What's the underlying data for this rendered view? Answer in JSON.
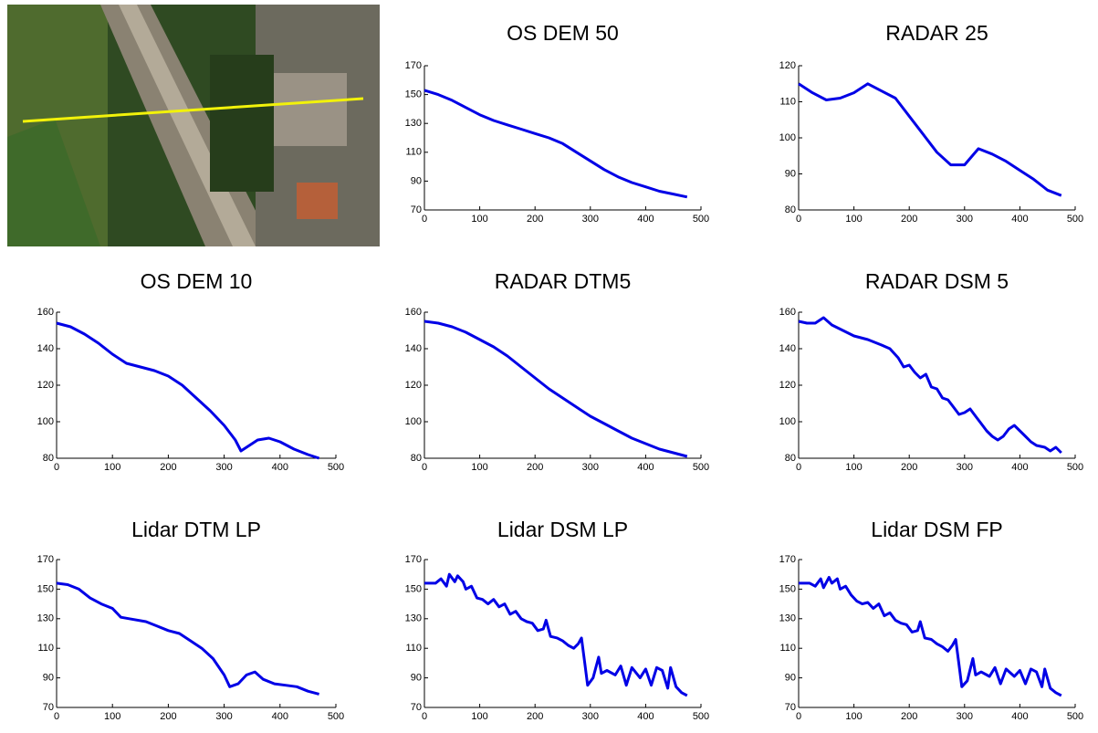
{
  "chart_data": [
    {
      "type": "line",
      "title": "OS DEM 50",
      "color": "#0000e6",
      "xlim": [
        0,
        500
      ],
      "xticks": [
        0,
        100,
        200,
        300,
        400,
        500
      ],
      "ylim": [
        70,
        170
      ],
      "yticks": [
        70,
        90,
        110,
        130,
        150,
        170
      ],
      "x": [
        0,
        25,
        50,
        75,
        100,
        125,
        150,
        175,
        200,
        225,
        250,
        275,
        300,
        325,
        350,
        375,
        400,
        425,
        450,
        475
      ],
      "values": [
        153,
        150,
        146,
        141,
        136,
        132,
        129,
        126,
        123,
        120,
        116,
        110,
        104,
        98,
        93,
        89,
        86,
        83,
        81,
        79
      ]
    },
    {
      "type": "line",
      "title": "RADAR 25",
      "color": "#0000e6",
      "xlim": [
        0,
        500
      ],
      "xticks": [
        0,
        100,
        200,
        300,
        400,
        500
      ],
      "ylim": [
        80,
        120
      ],
      "yticks": [
        80,
        90,
        100,
        110,
        120
      ],
      "x": [
        0,
        25,
        50,
        75,
        100,
        125,
        150,
        175,
        200,
        225,
        250,
        275,
        300,
        325,
        350,
        375,
        400,
        425,
        450,
        475
      ],
      "values": [
        115,
        112.5,
        110.5,
        111,
        112.5,
        115,
        113,
        111,
        106,
        101,
        96,
        92.5,
        92.5,
        97,
        95.5,
        93.5,
        91,
        88.5,
        85.5,
        84
      ]
    },
    {
      "type": "line",
      "title": "OS DEM 10",
      "color": "#0000e6",
      "xlim": [
        0,
        500
      ],
      "xticks": [
        0,
        100,
        200,
        300,
        400,
        500
      ],
      "ylim": [
        80,
        160
      ],
      "yticks": [
        80,
        100,
        120,
        140,
        160
      ],
      "x": [
        0,
        25,
        50,
        75,
        100,
        125,
        150,
        175,
        200,
        225,
        250,
        275,
        300,
        320,
        330,
        340,
        360,
        380,
        400,
        425,
        450,
        470
      ],
      "values": [
        154,
        152,
        148,
        143,
        137,
        132,
        130,
        128,
        125,
        120,
        113,
        106,
        98,
        90,
        84,
        86,
        90,
        91,
        89,
        85,
        82,
        80
      ]
    },
    {
      "type": "line",
      "title": "RADAR DTM5",
      "color": "#0000e6",
      "xlim": [
        0,
        500
      ],
      "xticks": [
        0,
        100,
        200,
        300,
        400,
        500
      ],
      "ylim": [
        80,
        160
      ],
      "yticks": [
        80,
        100,
        120,
        140,
        160
      ],
      "x": [
        0,
        25,
        50,
        75,
        100,
        125,
        150,
        175,
        200,
        225,
        250,
        275,
        300,
        325,
        350,
        375,
        400,
        425,
        450,
        475
      ],
      "values": [
        155,
        154,
        152,
        149,
        145,
        141,
        136,
        130,
        124,
        118,
        113,
        108,
        103,
        99,
        95,
        91,
        88,
        85,
        83,
        81
      ]
    },
    {
      "type": "line",
      "title": "RADAR DSM 5",
      "color": "#0000e6",
      "xlim": [
        0,
        500
      ],
      "xticks": [
        0,
        100,
        200,
        300,
        400,
        500
      ],
      "ylim": [
        80,
        160
      ],
      "yticks": [
        80,
        100,
        120,
        140,
        160
      ],
      "x": [
        0,
        15,
        30,
        45,
        60,
        80,
        100,
        125,
        150,
        165,
        180,
        190,
        200,
        210,
        220,
        230,
        240,
        250,
        260,
        270,
        280,
        290,
        300,
        310,
        320,
        330,
        340,
        350,
        360,
        370,
        380,
        390,
        400,
        410,
        420,
        430,
        445,
        455,
        465,
        475
      ],
      "values": [
        155,
        154,
        154,
        157,
        153,
        150,
        147,
        145,
        142,
        140,
        135,
        130,
        131,
        127,
        124,
        126,
        119,
        118,
        113,
        112,
        108,
        104,
        105,
        107,
        103,
        99,
        95,
        92,
        90,
        92,
        96,
        98,
        95,
        92,
        89,
        87,
        86,
        84,
        86,
        83
      ]
    },
    {
      "type": "line",
      "title": "Lidar DTM LP",
      "color": "#0000e6",
      "xlim": [
        0,
        500
      ],
      "xticks": [
        0,
        100,
        200,
        300,
        400,
        500
      ],
      "ylim": [
        70,
        170
      ],
      "yticks": [
        70,
        90,
        110,
        130,
        150,
        170
      ],
      "x": [
        0,
        20,
        40,
        60,
        80,
        100,
        115,
        130,
        160,
        180,
        200,
        220,
        240,
        260,
        280,
        300,
        310,
        325,
        340,
        355,
        370,
        390,
        410,
        430,
        450,
        470
      ],
      "values": [
        154,
        153,
        150,
        144,
        140,
        137,
        131,
        130,
        128,
        125,
        122,
        120,
        115,
        110,
        103,
        92,
        84,
        86,
        92,
        94,
        89,
        86,
        85,
        84,
        81,
        79
      ]
    },
    {
      "type": "line",
      "title": "Lidar DSM LP",
      "color": "#0000e6",
      "xlim": [
        0,
        500
      ],
      "xticks": [
        0,
        100,
        200,
        300,
        400,
        500
      ],
      "ylim": [
        70,
        170
      ],
      "yticks": [
        70,
        90,
        110,
        130,
        150,
        170
      ],
      "x": [
        0,
        20,
        30,
        40,
        45,
        55,
        60,
        70,
        75,
        85,
        95,
        105,
        115,
        125,
        135,
        145,
        155,
        165,
        175,
        185,
        195,
        205,
        215,
        220,
        228,
        240,
        250,
        260,
        270,
        278,
        284,
        290,
        295,
        305,
        315,
        320,
        330,
        345,
        355,
        365,
        375,
        390,
        400,
        410,
        420,
        430,
        440,
        445,
        455,
        465,
        475
      ],
      "values": [
        154,
        154,
        157,
        152,
        160,
        155,
        159,
        155,
        150,
        152,
        144,
        143,
        140,
        143,
        138,
        140,
        133,
        135,
        130,
        128,
        127,
        122,
        123,
        129,
        118,
        117,
        115,
        112,
        110,
        113,
        117,
        100,
        85,
        90,
        104,
        93,
        95,
        92,
        98,
        85,
        97,
        90,
        96,
        85,
        97,
        95,
        83,
        97,
        84,
        80,
        78
      ]
    },
    {
      "type": "line",
      "title": "Lidar DSM FP",
      "color": "#0000e6",
      "xlim": [
        0,
        500
      ],
      "xticks": [
        0,
        100,
        200,
        300,
        400,
        500
      ],
      "ylim": [
        70,
        170
      ],
      "yticks": [
        70,
        90,
        110,
        130,
        150,
        170
      ],
      "x": [
        0,
        20,
        30,
        40,
        45,
        55,
        60,
        70,
        75,
        85,
        95,
        105,
        115,
        125,
        135,
        145,
        155,
        165,
        175,
        185,
        195,
        205,
        215,
        220,
        228,
        240,
        250,
        260,
        270,
        278,
        284,
        290,
        295,
        305,
        315,
        320,
        330,
        345,
        355,
        365,
        375,
        390,
        400,
        410,
        420,
        430,
        440,
        445,
        455,
        465,
        475
      ],
      "values": [
        154,
        154,
        152,
        157,
        151,
        158,
        154,
        157,
        150,
        152,
        146,
        142,
        140,
        141,
        137,
        140,
        132,
        134,
        129,
        127,
        126,
        121,
        122,
        128,
        117,
        116,
        113,
        111,
        108,
        112,
        116,
        99,
        84,
        88,
        103,
        92,
        94,
        91,
        97,
        86,
        96,
        91,
        95,
        86,
        96,
        94,
        84,
        96,
        83,
        80,
        78
      ]
    }
  ]
}
